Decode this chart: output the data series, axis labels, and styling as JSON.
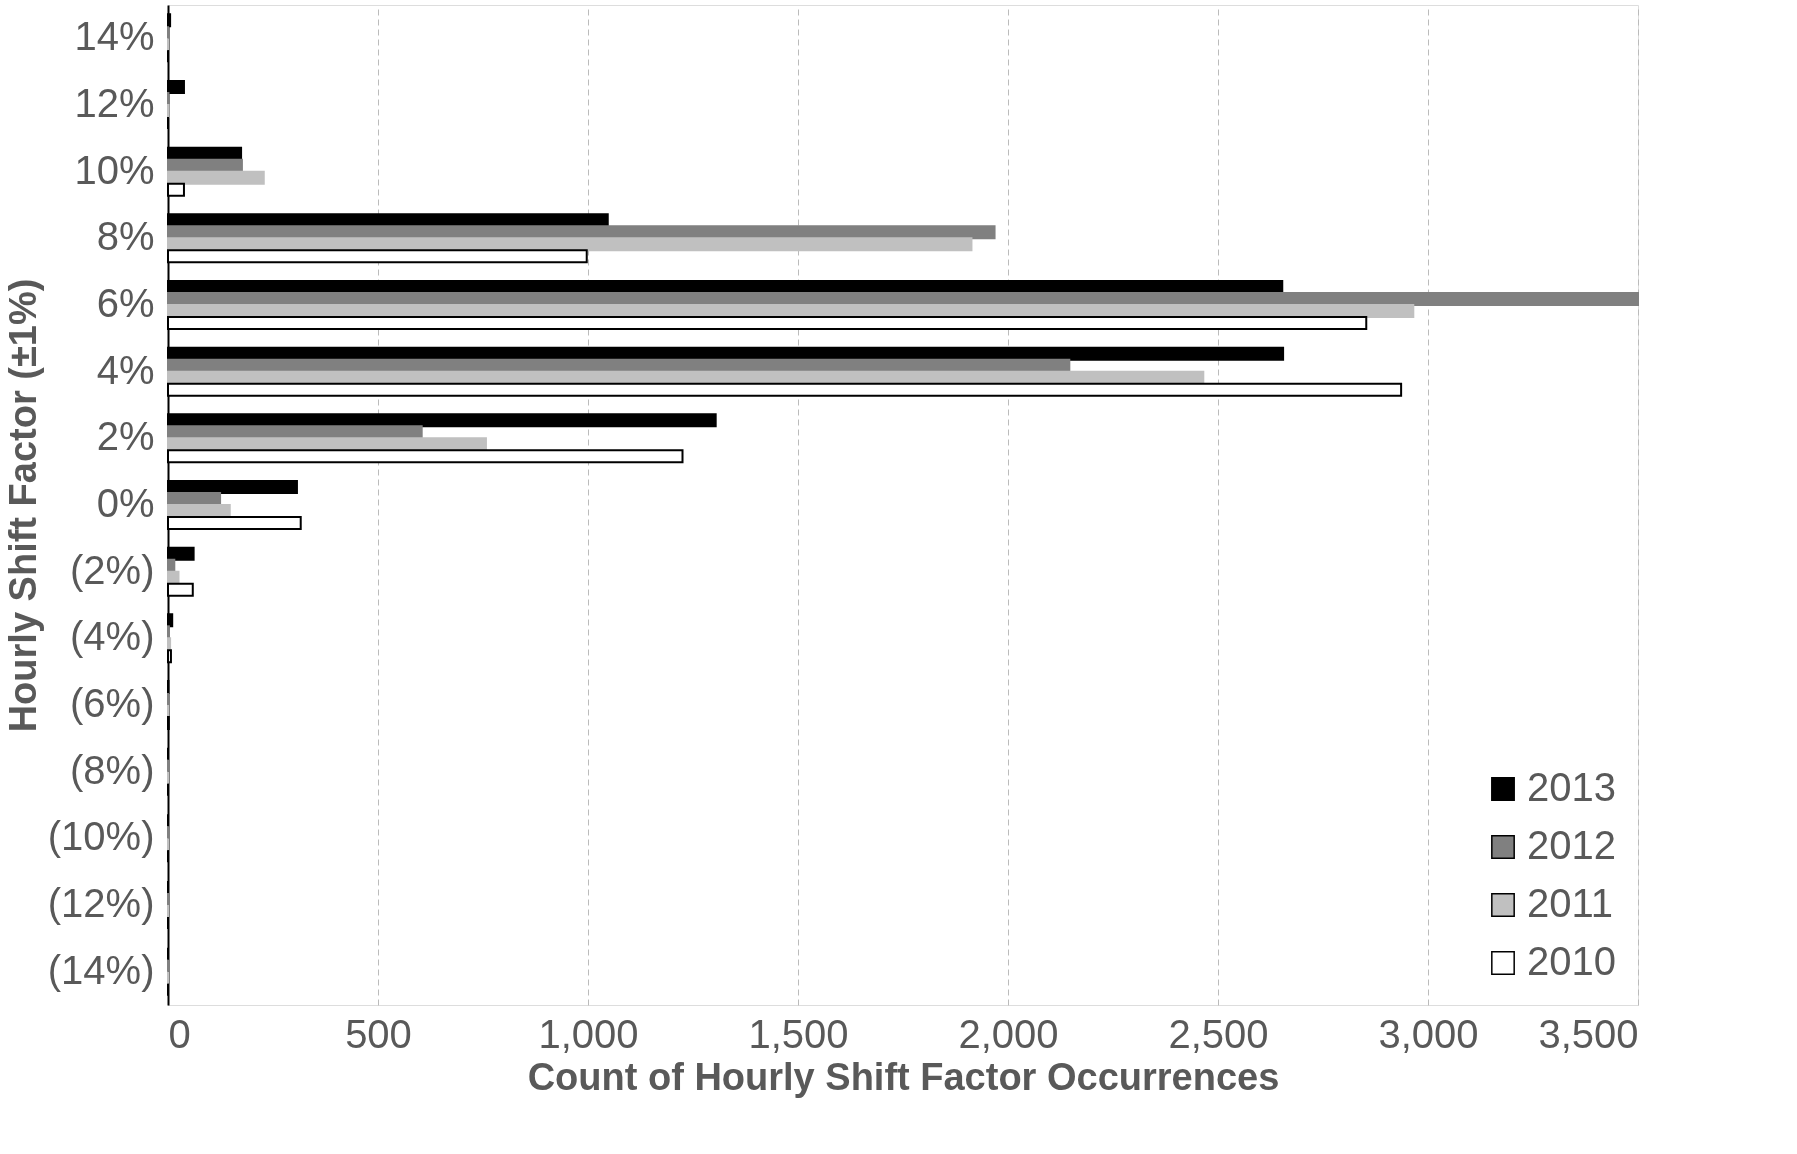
{
  "chart_data": {
    "type": "bar",
    "orientation": "horizontal",
    "xlabel": "Count of Hourly Shift Factor Occurrences",
    "ylabel": "Hourly Shift Factor (±1%)",
    "categories": [
      "14%",
      "12%",
      "10%",
      "8%",
      "6%",
      "4%",
      "2%",
      "0%",
      "(2%)",
      "(4%)",
      "(6%)",
      "(8%)",
      "(10%)",
      "(12%)",
      "(14%)"
    ],
    "series": [
      {
        "name": "2013",
        "color": "#000000",
        "values": [
          5,
          38,
          174,
          1047,
          2653,
          2655,
          1304,
          307,
          61,
          10,
          1,
          0,
          0,
          0,
          0
        ]
      },
      {
        "name": "2012",
        "color": "#808080",
        "values": [
          0,
          1,
          176,
          1968,
          3500,
          2146,
          604,
          124,
          15,
          2,
          0,
          0,
          0,
          0,
          0
        ]
      },
      {
        "name": "2011",
        "color": "#c0c0c0",
        "values": [
          0,
          1,
          228,
          1913,
          2965,
          2465,
          757,
          147,
          25,
          5,
          0,
          0,
          0,
          0,
          0
        ]
      },
      {
        "name": "2010",
        "color": "#ffffff",
        "values": [
          0,
          0,
          38,
          997,
          2853,
          2936,
          1225,
          316,
          59,
          7,
          2,
          0,
          0,
          0,
          0
        ]
      }
    ],
    "xlim": [
      0,
      3500
    ],
    "xticks": [
      0,
      500,
      {
        "value": 1000,
        "label": "1,000"
      },
      {
        "value": 1500,
        "label": "1,500"
      },
      {
        "value": 2000,
        "label": "2,000"
      },
      {
        "value": 2500,
        "label": "2,500"
      },
      {
        "value": 3000,
        "label": "3,000"
      },
      {
        "value": 3500,
        "label": "3,500"
      }
    ],
    "grid": "x",
    "legend": "bottom right"
  }
}
